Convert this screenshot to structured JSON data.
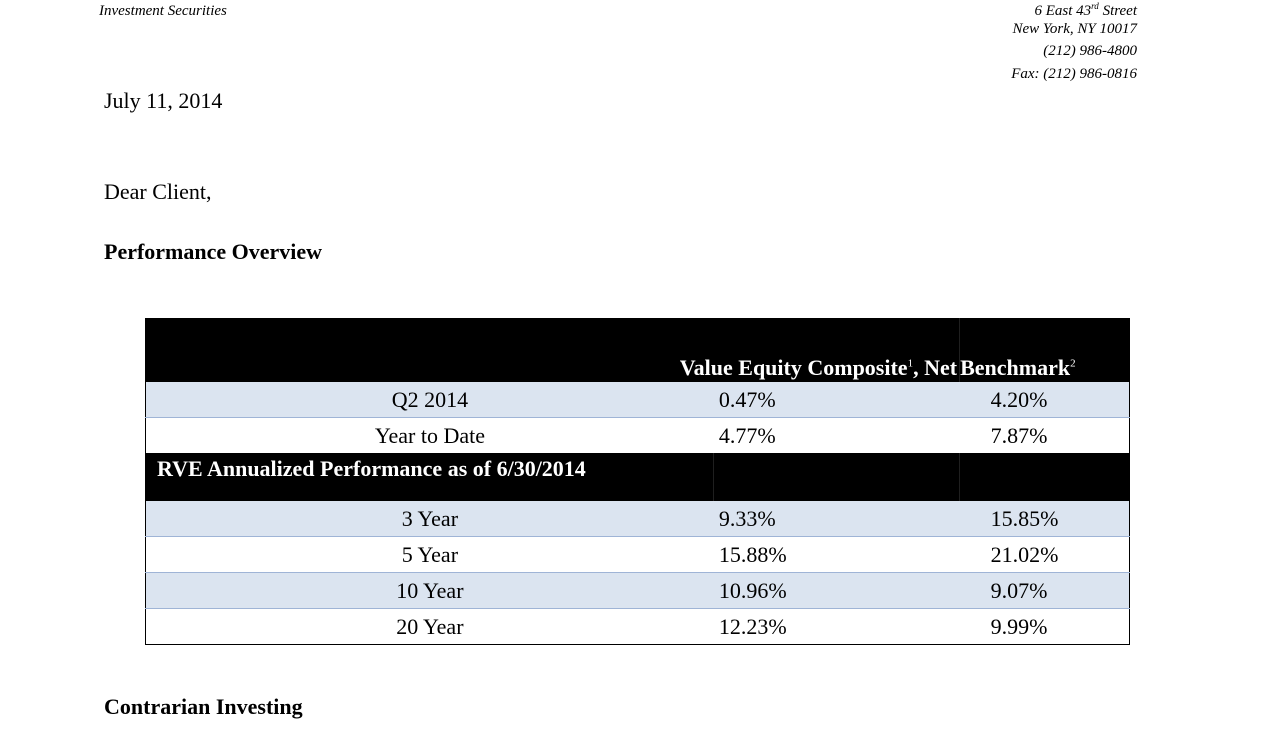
{
  "letterhead": {
    "firm_line": "Investment Securities",
    "address_street_prefix": "6 East 43",
    "address_street_suffix_sup": "rd",
    "address_street_rest": " Street",
    "address_city": "New York, NY  10017",
    "phone": "(212) 986-4800",
    "fax": "Fax: (212) 986-0816"
  },
  "date": "July 11, 2014",
  "salutation": "Dear Client,",
  "sections": {
    "performance_heading": "Performance Overview",
    "contrarian_heading": "Contrarian Investing"
  },
  "table": {
    "header": {
      "composite_label": "Value Equity Composite",
      "composite_footnote": "1",
      "composite_suffix": ", Net",
      "benchmark_label": "Benchmark",
      "benchmark_footnote": "2"
    },
    "recent_rows": [
      {
        "period": "Q2 2014",
        "composite": "0.47%",
        "benchmark": "4.20%"
      },
      {
        "period": "Year to Date",
        "composite": "4.77%",
        "benchmark": "7.87%"
      }
    ],
    "annualized_heading": "RVE Annualized Performance as of 6/30/2014",
    "annualized_rows": [
      {
        "period": "3 Year",
        "composite": "9.33%",
        "benchmark": "15.85%"
      },
      {
        "period": "5 Year",
        "composite": "15.88%",
        "benchmark": "21.02%"
      },
      {
        "period": "10 Year",
        "composite": "10.96%",
        "benchmark": "9.07%"
      },
      {
        "period": "20 Year",
        "composite": "12.23%",
        "benchmark": "9.99%"
      }
    ]
  },
  "colors": {
    "header_background": "#000000",
    "header_text": "#ffffff",
    "shaded_row": "#dbe4f0",
    "row_divider": "#9fb4d6"
  }
}
